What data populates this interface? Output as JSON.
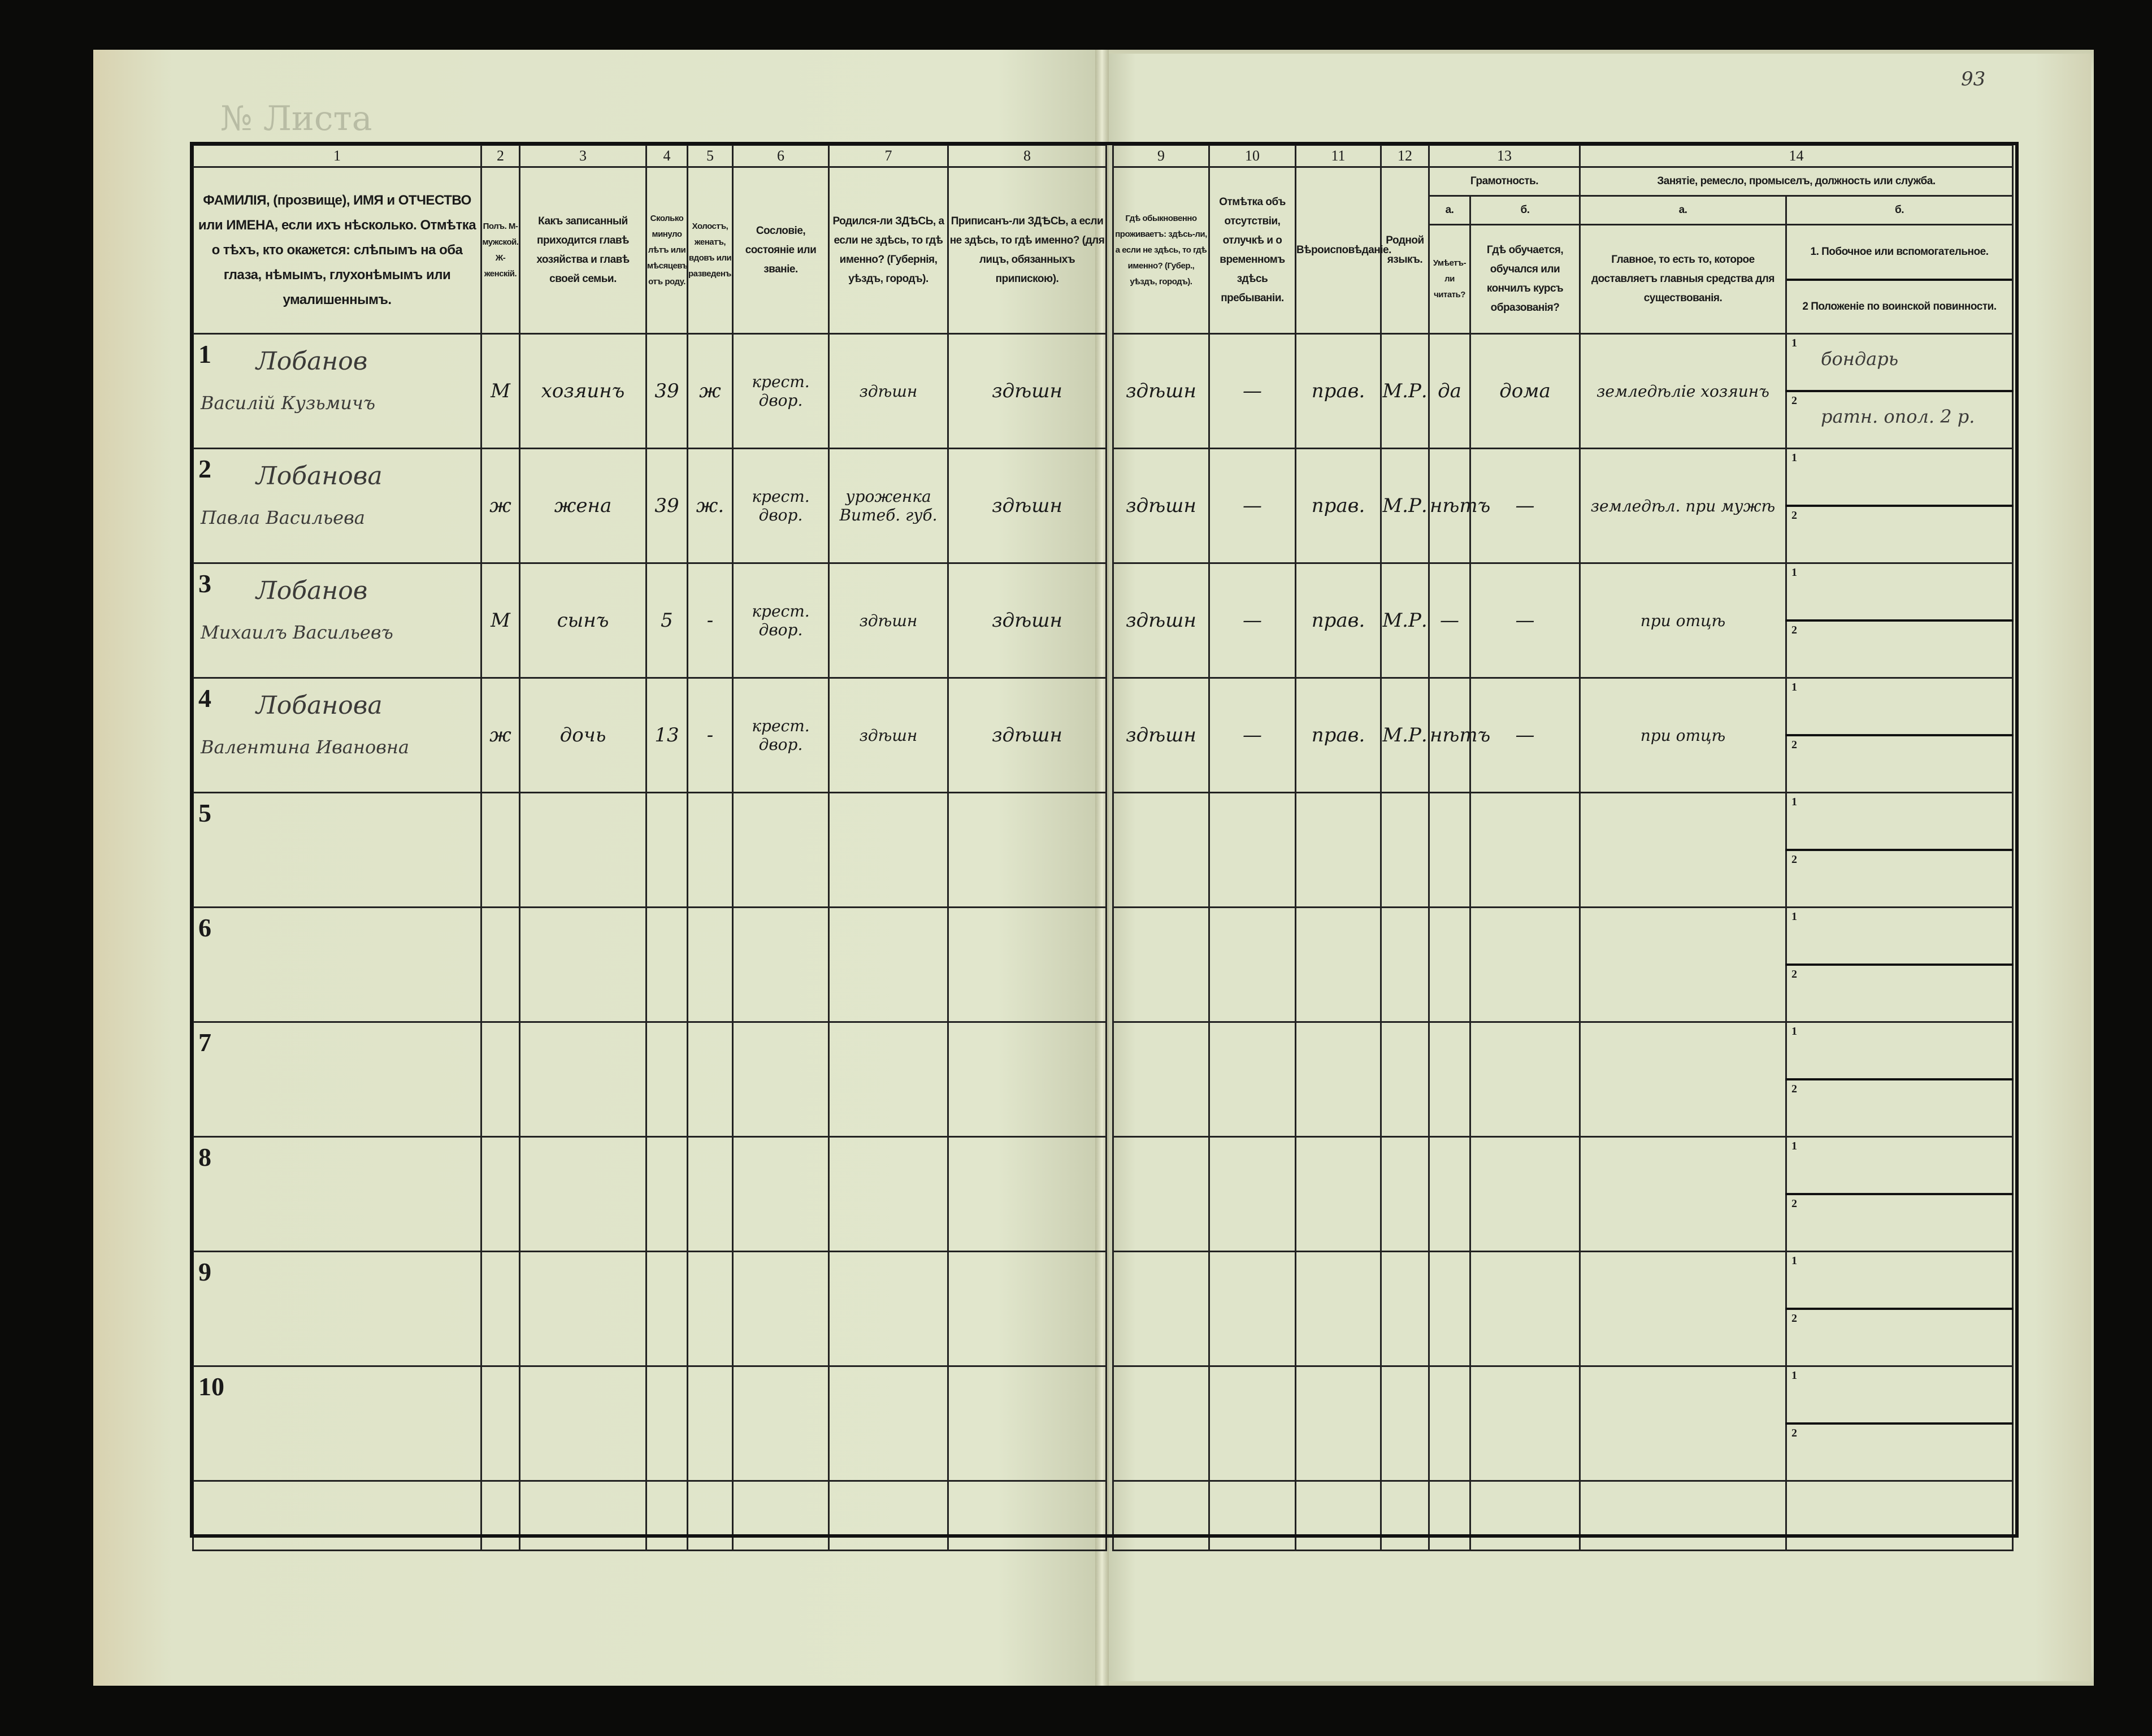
{
  "page_number": "93",
  "faded_header": "№ Листа",
  "column_numbers": [
    "1",
    "2",
    "3",
    "4",
    "5",
    "6",
    "7",
    "8",
    "9",
    "10",
    "11",
    "12",
    "13",
    "14"
  ],
  "headers": {
    "c1": "ФАМИЛІЯ, (прозвище), ИМЯ и ОТЧЕСТВО или ИМЕНА, если ихъ нѣсколько. Отмѣтка о тѣхъ, кто окажется: слѣпымъ на оба глаза, нѣмымъ, глухонѣмымъ или умалишеннымъ.",
    "c2": "Полъ. М-мужской. Ж-женскій.",
    "c3": "Какъ записанный приходится главѣ хозяйства и главѣ своей семьи.",
    "c4": "Сколько минуло лѣтъ или мѣсяцевъ отъ роду.",
    "c5": "Холостъ, женатъ, вдовъ или разведенъ.",
    "c6": "Сословіе, состояніе или званіе.",
    "c7": "Родился-ли ЗДѢСЬ, а если не здѣсь, то гдѣ именно? (Губернія, уѣздъ, городъ).",
    "c8": "Приписанъ-ли ЗДѢСЬ, а если не здѣсь, то гдѣ именно? (для лицъ, обязанныхъ припискою).",
    "c9": "Гдѣ обыкновенно проживаетъ: здѣсь-ли, а если не здѣсь, то гдѣ именно? (Губер., уѣздъ, городъ).",
    "c10": "Отмѣтка объ отсутствіи, отлучкѣ и о временномъ здѣсь пребываніи.",
    "c11": "Вѣроисповѣданіе.",
    "c12": "Родной языкъ.",
    "c13_group": "Грамотность.",
    "c13a_label": "а.",
    "c13a": "Умѣетъ-ли читать?",
    "c13b_label": "б.",
    "c13b": "Гдѣ обучается, обучался или кончилъ курсъ образованія?",
    "c14_group": "Занятіе, ремесло, промыселъ, должность или служба.",
    "c14a_label": "а.",
    "c14a": "Главное, то есть то, которое доставляетъ главныя средства для существованія.",
    "c14b_label": "б.",
    "c14b_1": "1. Побочное или вспомогательное.",
    "c14b_2": "2 Положеніе по воинской повинности."
  },
  "sub_labels": [
    "1",
    "2"
  ],
  "rows": [
    {
      "n": "1",
      "surname": "Лобанов",
      "given": "Василій Кузьмичъ",
      "sex": "М",
      "relation": "хозяинъ",
      "age": "39",
      "marital": "ж",
      "estate": "крест. двор.",
      "born": "здѣшн",
      "registered": "здѣшн",
      "residence": "здѣшн",
      "absence": "—",
      "religion": "прав.",
      "language": "М.Р.",
      "literate": "да",
      "education": "дома",
      "occupation": "земледѣліе хозяинъ",
      "side": "бондарь",
      "military": "ратн. опол. 2 р."
    },
    {
      "n": "2",
      "surname": "Лобанова",
      "given": "Павла Васильева",
      "sex": "ж",
      "relation": "жена",
      "age": "39",
      "marital": "ж.",
      "estate": "крест. двор.",
      "born": "уроженка Витеб. губ.",
      "registered": "здѣшн",
      "residence": "здѣшн",
      "absence": "—",
      "religion": "прав.",
      "language": "М.Р.",
      "literate": "нѣтъ",
      "education": "—",
      "occupation": "земледѣл. при мужѣ",
      "side": "",
      "military": ""
    },
    {
      "n": "3",
      "surname": "Лобанов",
      "given": "Михаилъ Васильевъ",
      "sex": "М",
      "relation": "сынъ",
      "age": "5",
      "marital": "-",
      "estate": "крест. двор.",
      "born": "здѣшн",
      "registered": "здѣшн",
      "residence": "здѣшн",
      "absence": "—",
      "religion": "прав.",
      "language": "М.Р.",
      "literate": "—",
      "education": "—",
      "occupation": "при отцѣ",
      "side": "",
      "military": ""
    },
    {
      "n": "4",
      "surname": "Лобанова",
      "given": "Валентина Ивановна",
      "sex": "ж",
      "relation": "дочь",
      "age": "13",
      "marital": "-",
      "estate": "крест. двор.",
      "born": "здѣшн",
      "registered": "здѣшн",
      "residence": "здѣшн",
      "absence": "—",
      "religion": "прав.",
      "language": "М.Р.",
      "literate": "нѣтъ",
      "education": "—",
      "occupation": "при отцѣ",
      "side": "",
      "military": ""
    },
    {
      "n": "5"
    },
    {
      "n": "6"
    },
    {
      "n": "7"
    },
    {
      "n": "8"
    },
    {
      "n": "9"
    },
    {
      "n": "10"
    }
  ]
}
